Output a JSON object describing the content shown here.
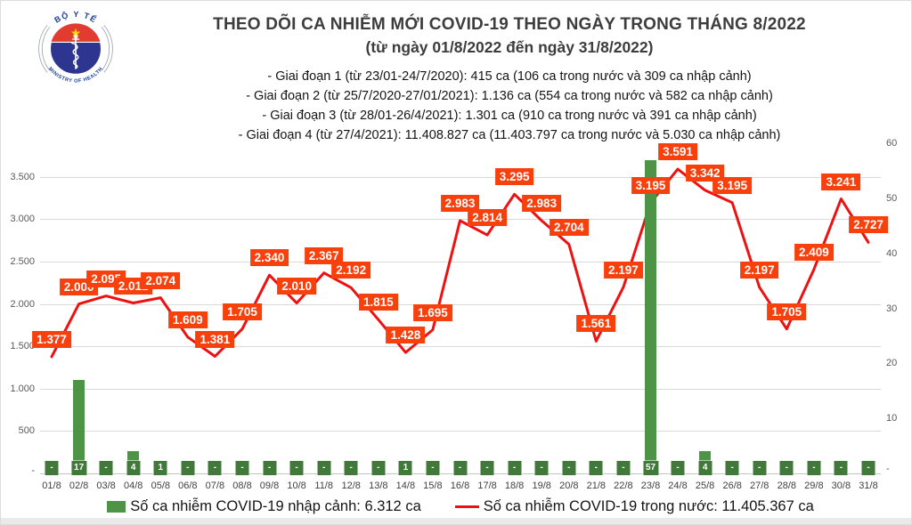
{
  "header": {
    "logo": {
      "top_text": "BỘ Y TẾ",
      "bottom_text": "MINISTRY OF HEALTH"
    },
    "title": "THEO DÕI CA NHIỄM MỚI COVID-19 THEO NGÀY TRONG THÁNG 8/2022",
    "subtitle": "(từ ngày 01/8/2022 đến ngày 31/8/2022)",
    "notes": [
      "- Giai đoạn 1 (từ 23/01-24/7/2020): 415 ca (106 ca trong nước và 309 ca nhập cảnh)",
      "- Giai đoạn 2 (từ 25/7/2020-27/01/2021): 1.136 ca (554 ca trong nước và 582 ca nhập cảnh)",
      "- Giai đoạn 3 (từ 28/01-26/4/2021): 1.301 ca (910 ca trong nước và 391 ca nhập cảnh)",
      "- Giai đoạn 4 (từ 27/4/2021): 11.408.827 ca (11.403.797 ca trong nước và 5.030 ca nhập cảnh)"
    ]
  },
  "chart_data": {
    "type": "combo line+bar",
    "categories": [
      "01/8",
      "02/8",
      "03/8",
      "04/8",
      "05/8",
      "06/8",
      "07/8",
      "08/8",
      "09/8",
      "10/8",
      "11/8",
      "12/8",
      "13/8",
      "14/8",
      "15/8",
      "16/8",
      "17/8",
      "18/8",
      "19/8",
      "20/8",
      "21/8",
      "22/8",
      "23/8",
      "24/8",
      "25/8",
      "26/8",
      "27/8",
      "28/8",
      "29/8",
      "30/8",
      "31/8"
    ],
    "series": [
      {
        "name": "Số ca nhiễm COVID-19 trong nước",
        "type": "line",
        "axis": "left",
        "values": [
          1377,
          2000,
          2095,
          2012,
          2074,
          1609,
          1381,
          1705,
          2340,
          2010,
          2367,
          2192,
          1815,
          1428,
          1695,
          2983,
          2814,
          3295,
          2983,
          2704,
          1561,
          2197,
          3195,
          3591,
          3342,
          3195,
          2197,
          1705,
          2409,
          3241,
          2727
        ],
        "labels": [
          "1.377",
          "2.000",
          "2.095",
          "2.012",
          "2.074",
          "1.609",
          "1.381",
          "1.705",
          "2.340",
          "2.010",
          "2.367",
          "2.192",
          "1.815",
          "1.428",
          "1.695",
          "2.983",
          "2.814",
          "3.295",
          "2.983",
          "2.704",
          "1.561",
          "2.197",
          "3.195",
          "3.591",
          "3.342",
          "3.195",
          "2.197",
          "1.705",
          "2.409",
          "3.241",
          "2.727"
        ]
      },
      {
        "name": "Số ca nhiễm COVID-19 nhập cảnh",
        "type": "bar",
        "axis": "right",
        "values": [
          0,
          17,
          0,
          4,
          1,
          0,
          0,
          0,
          0,
          0,
          0,
          0,
          0,
          1,
          0,
          0,
          0,
          0,
          0,
          0,
          0,
          0,
          57,
          0,
          4,
          0,
          0,
          0,
          0,
          0,
          0
        ],
        "labels": [
          "-",
          "17",
          "-",
          "4",
          "1",
          "-",
          "-",
          "-",
          "-",
          "-",
          "-",
          "-",
          "-",
          "1",
          "-",
          "-",
          "-",
          "-",
          "-",
          "-",
          "-",
          "-",
          "57",
          "-",
          "4",
          "-",
          "-",
          "-",
          "-",
          "-",
          "-"
        ]
      }
    ],
    "left_axis": {
      "ticks": [
        {
          "label": "3.500",
          "value": 3500
        },
        {
          "label": "3.000",
          "value": 3000
        },
        {
          "label": "2.500",
          "value": 2500
        },
        {
          "label": "2.000",
          "value": 2000
        },
        {
          "label": "1.500",
          "value": 1500
        },
        {
          "label": "1.000",
          "value": 1000
        },
        {
          "label": "500",
          "value": 500
        },
        {
          "label": "-",
          "value": 0
        }
      ],
      "min": 0,
      "max": 3900,
      "grid": true
    },
    "right_axis": {
      "ticks": [
        {
          "label": "60",
          "value": 60
        },
        {
          "label": "50",
          "value": 50
        },
        {
          "label": "40",
          "value": 40
        },
        {
          "label": "30",
          "value": 30
        },
        {
          "label": "20",
          "value": 20
        },
        {
          "label": "10",
          "value": 10
        },
        {
          "label": "-",
          "value": 0
        }
      ],
      "min": 0,
      "max": 60,
      "grid": false
    },
    "legend_position": "bottom"
  },
  "legend": {
    "bar_label": "Số ca nhiễm COVID-19 nhập cảnh: 6.312 ca",
    "line_label": "Số ca nhiễm COVID-19 trong nước: 11.405.367 ca"
  },
  "colors": {
    "line": "#ee1111",
    "line_label_bg": "#f8400d",
    "bar": "#4e9447",
    "bar_label_bg": "#41793a",
    "grid": "#d9d9d9",
    "logo_red": "#e23b30",
    "logo_blue": "#2d3590",
    "logo_star": "#ffd400"
  }
}
